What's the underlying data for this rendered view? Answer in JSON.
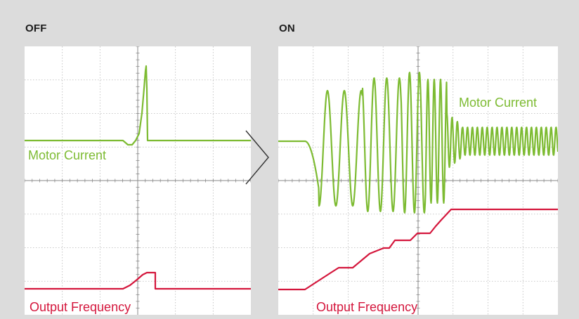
{
  "panels": {
    "off": {
      "title": "OFF",
      "motor_current_label": "Motor Current",
      "output_frequency_label": "Output Frequency"
    },
    "on": {
      "title": "ON",
      "motor_current_label": "Motor Current",
      "output_frequency_label": "Output Frequency"
    }
  },
  "colors": {
    "background": "#dcdcdc",
    "scope_background": "#ffffff",
    "grid": "#b9b9b9",
    "motor_current": "#7dbb32",
    "output_frequency": "#d4163c",
    "chevron": "#333333"
  },
  "icons": {
    "divider": "chevron-right-icon"
  }
}
